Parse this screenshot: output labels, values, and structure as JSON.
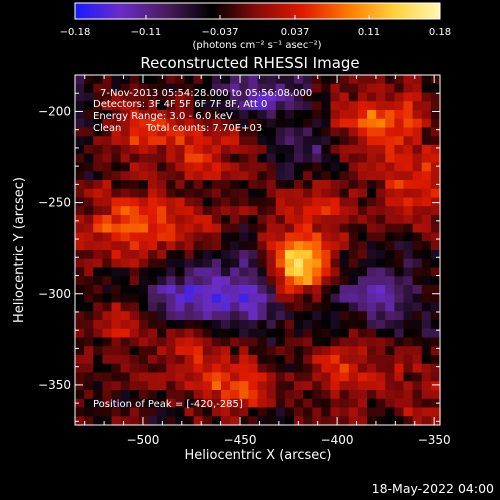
{
  "chart_data": {
    "type": "heatmap",
    "title": "Reconstructed RHESSI Image",
    "xlabel": "Heliocentric X (arcsec)",
    "ylabel": "Heliocentric Y (arcsec)",
    "xlim": [
      -535,
      -347
    ],
    "ylim": [
      -372,
      -180
    ],
    "xticks": [
      -500,
      -450,
      -400,
      -350
    ],
    "xtick_labels": [
      "−500",
      "−450",
      "−400",
      "−350"
    ],
    "yticks": [
      -350,
      -300,
      -250,
      -200
    ],
    "ytick_labels": [
      "−350",
      "−300",
      "−250",
      "−200"
    ],
    "annotations": {
      "time_range": "7-Nov-2013 05:54:28.000 to 05:56:08.000",
      "detectors": "Detectors: 3F 4F 5F 6F 7F 8F, Att 0",
      "energy_range": "Energy Range: 3.0 - 6.0 keV",
      "algorithm": "Clean",
      "total_counts": "Total counts: 7.70E+03",
      "peak_position": "Position of Peak = [-420,-285]"
    },
    "peak": {
      "x": -420,
      "y": -285,
      "value": 0.18
    },
    "colorbar": {
      "range": [
        -0.18,
        0.18
      ],
      "ticks": [
        -0.18,
        -0.11,
        -0.037,
        0.037,
        0.11,
        0.18
      ],
      "tick_labels": [
        "−0.18",
        "−0.11",
        "−0.037",
        "0.037",
        "0.11",
        "0.18"
      ],
      "unit": "(photons cm⁻² s⁻¹ asec⁻²)",
      "colormap": [
        "#1a1aff",
        "#6a2cc8",
        "#4a1c5e",
        "#000000",
        "#8a0a0a",
        "#e01b00",
        "#ff7a00",
        "#ffd23a",
        "#fff6b0"
      ]
    },
    "hotspots": [
      {
        "x": -420,
        "y": -285,
        "value": 0.18,
        "sx": 11,
        "sy": 11
      },
      {
        "x": -412,
        "y": -255,
        "value": 0.08,
        "sx": 14,
        "sy": 10
      },
      {
        "x": -500,
        "y": -262,
        "value": 0.11,
        "sx": 22,
        "sy": 14
      },
      {
        "x": -470,
        "y": -220,
        "value": 0.07,
        "sx": 18,
        "sy": 12
      },
      {
        "x": -505,
        "y": -210,
        "value": 0.07,
        "sx": 12,
        "sy": 12
      },
      {
        "x": -378,
        "y": -207,
        "value": 0.1,
        "sx": 16,
        "sy": 14
      },
      {
        "x": -360,
        "y": -240,
        "value": 0.07,
        "sx": 12,
        "sy": 15
      },
      {
        "x": -468,
        "y": -330,
        "value": 0.07,
        "sx": 16,
        "sy": 11
      },
      {
        "x": -455,
        "y": -352,
        "value": 0.09,
        "sx": 14,
        "sy": 9
      },
      {
        "x": -510,
        "y": -320,
        "value": 0.05,
        "sx": 12,
        "sy": 12
      },
      {
        "x": -395,
        "y": -342,
        "value": 0.06,
        "sx": 15,
        "sy": 14
      },
      {
        "x": -360,
        "y": -355,
        "value": 0.05,
        "sx": 12,
        "sy": 12
      },
      {
        "x": -450,
        "y": -300,
        "value": -0.1,
        "sx": 14,
        "sy": 14
      },
      {
        "x": -480,
        "y": -300,
        "value": -0.08,
        "sx": 14,
        "sy": 13
      },
      {
        "x": -440,
        "y": -190,
        "value": -0.09,
        "sx": 15,
        "sy": 10
      },
      {
        "x": -380,
        "y": -300,
        "value": -0.08,
        "sx": 16,
        "sy": 12
      },
      {
        "x": -420,
        "y": -220,
        "value": -0.06,
        "sx": 10,
        "sy": 12
      }
    ]
  },
  "footer": {
    "date": "18-May-2022 04:00"
  }
}
